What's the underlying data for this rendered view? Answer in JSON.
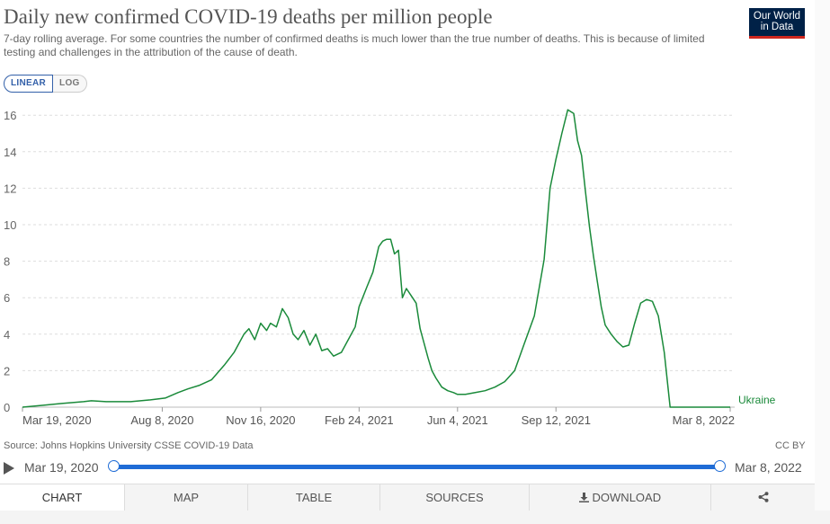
{
  "header": {
    "title": "Daily new confirmed COVID-19 deaths per million people",
    "subtitle": "7-day rolling average. For some countries the number of confirmed deaths is much lower than the true number of deaths. This is because of limited testing and challenges in the attribution of the cause of death.",
    "logo_line1": "Our World",
    "logo_line2": "in Data"
  },
  "scale_toggle": {
    "linear_label": "LINEAR",
    "log_label": "LOG",
    "selected": "linear"
  },
  "colors": {
    "series": "#1a8a3a",
    "grid": "#dddddd",
    "accent": "#1f6cd6",
    "logo_bg": "#002147",
    "logo_bar": "#ce261e"
  },
  "chart_data": {
    "type": "line",
    "title": "Daily new confirmed COVID-19 deaths per million people",
    "xlabel": "",
    "ylabel": "",
    "ylim": [
      0,
      16.5
    ],
    "yticks": [
      0,
      2,
      4,
      6,
      8,
      10,
      12,
      14,
      16
    ],
    "xticks": [
      "Mar 19, 2020",
      "Aug 8, 2020",
      "Nov 16, 2020",
      "Feb 24, 2021",
      "Jun 4, 2021",
      "Sep 12, 2021",
      "Mar 8, 2022"
    ],
    "xtick_days": [
      0,
      142,
      242,
      342,
      442,
      542,
      719
    ],
    "xlim_days": [
      0,
      719
    ],
    "grid": "horizontal-dashed",
    "series": [
      {
        "name": "Ukraine",
        "label_position": "end",
        "x_days": [
          0,
          20,
          40,
          62,
          70,
          85,
          110,
          130,
          145,
          158,
          168,
          180,
          192,
          205,
          215,
          225,
          230,
          236,
          242,
          248,
          252,
          258,
          264,
          270,
          275,
          280,
          286,
          292,
          298,
          304,
          310,
          316,
          324,
          332,
          338,
          342,
          350,
          356,
          362,
          366,
          370,
          374,
          378,
          382,
          386,
          390,
          395,
          400,
          404,
          408,
          412,
          416,
          420,
          426,
          432,
          438,
          442,
          450,
          460,
          470,
          480,
          490,
          500,
          510,
          520,
          530,
          536,
          542,
          548,
          554,
          560,
          564,
          568,
          572,
          576,
          580,
          584,
          588,
          592,
          598,
          604,
          610,
          616,
          622,
          628,
          634,
          640,
          646,
          652,
          658,
          664,
          670,
          676,
          682,
          688,
          694,
          700,
          704,
          707,
          710,
          713,
          716,
          719
        ],
        "values": [
          0.0,
          0.1,
          0.2,
          0.3,
          0.35,
          0.3,
          0.3,
          0.4,
          0.5,
          0.8,
          1.0,
          1.2,
          1.5,
          2.3,
          3.0,
          4.0,
          4.3,
          3.7,
          4.6,
          4.2,
          4.6,
          4.4,
          5.4,
          4.9,
          4.0,
          3.7,
          4.2,
          3.4,
          4.0,
          3.1,
          3.2,
          2.8,
          3.0,
          3.8,
          4.4,
          5.5,
          6.6,
          7.4,
          8.8,
          9.1,
          9.2,
          9.2,
          8.4,
          8.6,
          6.0,
          6.5,
          6.1,
          5.7,
          4.3,
          3.5,
          2.7,
          2.0,
          1.6,
          1.1,
          0.9,
          0.8,
          0.7,
          0.7,
          0.8,
          0.9,
          1.1,
          1.4,
          2.0,
          3.5,
          5.0,
          8.1,
          12.0,
          13.6,
          15.0,
          16.3,
          16.1,
          14.6,
          13.8,
          11.8,
          9.9,
          8.3,
          6.9,
          5.5,
          4.5,
          4.0,
          3.6,
          3.3,
          3.4,
          4.6,
          5.7,
          5.9,
          5.8,
          5.0,
          3.0,
          0.0,
          0.0,
          0.0,
          0.0,
          0.0,
          0.0,
          0.0,
          0.0,
          0.0,
          0.0,
          0.0,
          0.0,
          0.0,
          0.0
        ]
      }
    ]
  },
  "footer": {
    "source": "Source: Johns Hopkins University CSSE COVID-19 Data",
    "license": "CC BY"
  },
  "timeline": {
    "start_label": "Mar 19, 2020",
    "end_label": "Mar 8, 2022"
  },
  "tabs": [
    {
      "label": "CHART",
      "active": true
    },
    {
      "label": "MAP",
      "active": false
    },
    {
      "label": "TABLE",
      "active": false
    },
    {
      "label": "SOURCES",
      "active": false
    },
    {
      "label": "DOWNLOAD",
      "active": false,
      "icon": "download-icon"
    },
    {
      "label": "",
      "active": false,
      "icon": "share-icon"
    }
  ]
}
